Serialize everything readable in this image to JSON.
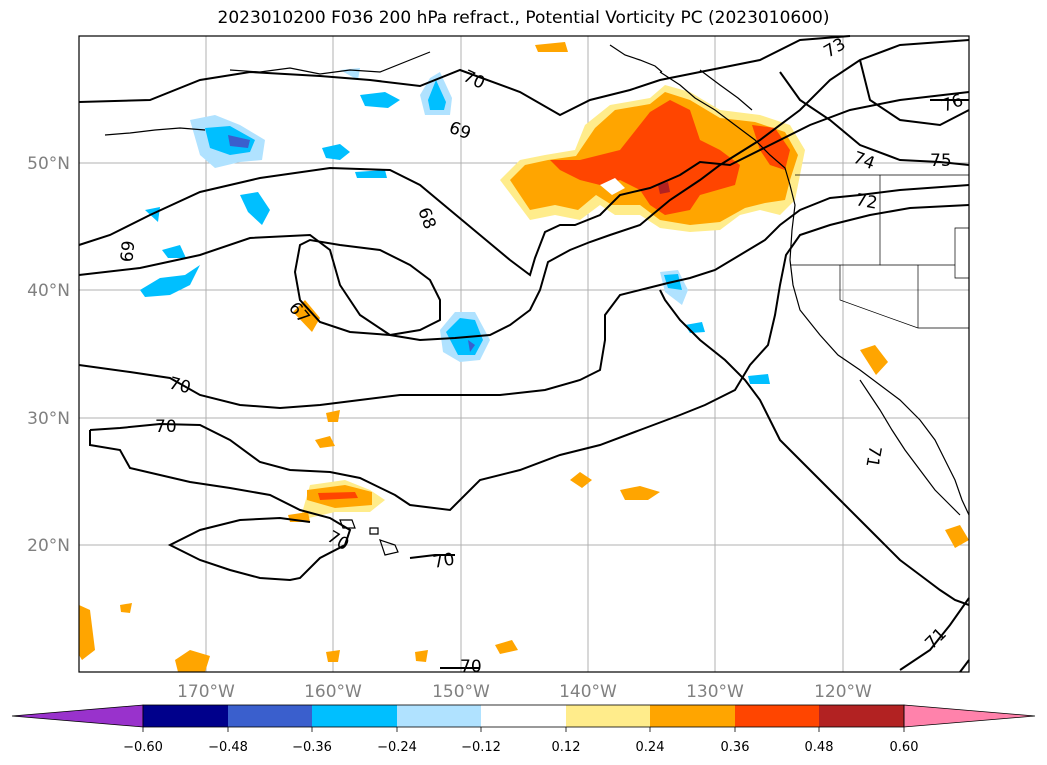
{
  "title": "2023010200 F036 200 hPa refract., Potential Vorticity PC (2023010600)",
  "lat_labels": [
    "50°N",
    "40°N",
    "30°N",
    "20°N"
  ],
  "lon_labels": [
    "170°W",
    "160°W",
    "150°W",
    "140°W",
    "130°W",
    "120°W"
  ],
  "contour_labels": [
    "70",
    "73",
    "76",
    "69",
    "75",
    "74",
    "68",
    "72",
    "69",
    "67",
    "70",
    "70",
    "71",
    "70",
    "70",
    "71",
    "70"
  ],
  "colorbar": {
    "ticks": [
      "−0.60",
      "−0.48",
      "−0.36",
      "−0.24",
      "−0.12",
      "0.12",
      "0.24",
      "0.36",
      "0.48",
      "0.60"
    ],
    "colors": [
      "#9932cc",
      "#00008b",
      "#3a5fcd",
      "#00bfff",
      "#b0e2ff",
      "#ffffff",
      "#ffec8b",
      "#ffa500",
      "#ff4500",
      "#b22222",
      "#ff82ab"
    ]
  }
}
